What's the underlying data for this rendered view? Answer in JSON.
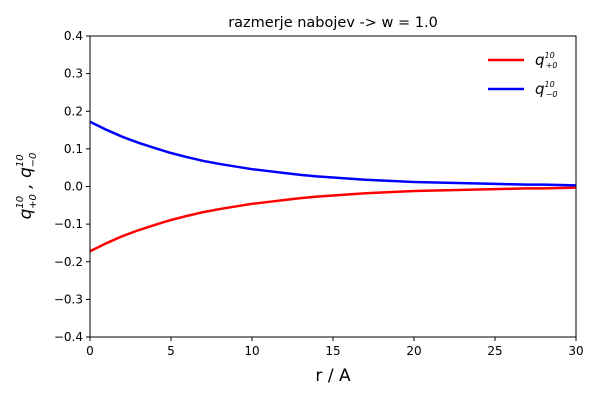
{
  "chart_data": {
    "type": "line",
    "title": "razmerje nabojev -> w = 1.0",
    "xlabel": "r / A",
    "ylabel": {
      "base1": "q",
      "sup1": "10",
      "sub1": "+0",
      "sep": " , ",
      "base2": "q",
      "sup2": "10",
      "sub2": "−0"
    },
    "xlim": [
      0,
      30
    ],
    "ylim": [
      -0.4,
      0.4
    ],
    "xticks": [
      0,
      5,
      10,
      15,
      20,
      25,
      30
    ],
    "xtick_labels": [
      "0",
      "5",
      "10",
      "15",
      "20",
      "25",
      "30"
    ],
    "yticks": [
      -0.4,
      -0.3,
      -0.2,
      -0.1,
      0.0,
      0.1,
      0.2,
      0.3,
      0.4
    ],
    "ytick_labels": [
      "−0.4",
      "−0.3",
      "−0.2",
      "−0.1",
      "0.0",
      "0.1",
      "0.2",
      "0.3",
      "0.4"
    ],
    "grid": false,
    "legend_position": "top-right",
    "x": [
      0,
      1,
      2,
      3,
      4,
      5,
      6,
      7,
      8,
      9,
      10,
      11,
      12,
      13,
      14,
      15,
      16,
      17,
      18,
      19,
      20,
      21,
      22,
      23,
      24,
      25,
      26,
      27,
      28,
      29,
      30
    ],
    "series": [
      {
        "label_base": "q",
        "label_sup": "10",
        "label_sub": "+0",
        "color": "#ff0000",
        "values": [
          -0.172,
          -0.151,
          -0.132,
          -0.116,
          -0.102,
          -0.089,
          -0.078,
          -0.068,
          -0.06,
          -0.053,
          -0.046,
          -0.041,
          -0.036,
          -0.031,
          -0.027,
          -0.024,
          -0.021,
          -0.018,
          -0.016,
          -0.014,
          -0.012,
          -0.011,
          -0.01,
          -0.009,
          -0.008,
          -0.007,
          -0.006,
          -0.005,
          -0.005,
          -0.004,
          -0.003
        ]
      },
      {
        "label_base": "q",
        "label_sup": "10",
        "label_sub": "−0",
        "color": "#0000ff",
        "values": [
          0.172,
          0.151,
          0.132,
          0.116,
          0.102,
          0.089,
          0.078,
          0.068,
          0.06,
          0.053,
          0.046,
          0.041,
          0.036,
          0.031,
          0.027,
          0.024,
          0.021,
          0.018,
          0.016,
          0.014,
          0.012,
          0.011,
          0.01,
          0.009,
          0.008,
          0.007,
          0.006,
          0.005,
          0.005,
          0.004,
          0.003
        ]
      }
    ]
  }
}
